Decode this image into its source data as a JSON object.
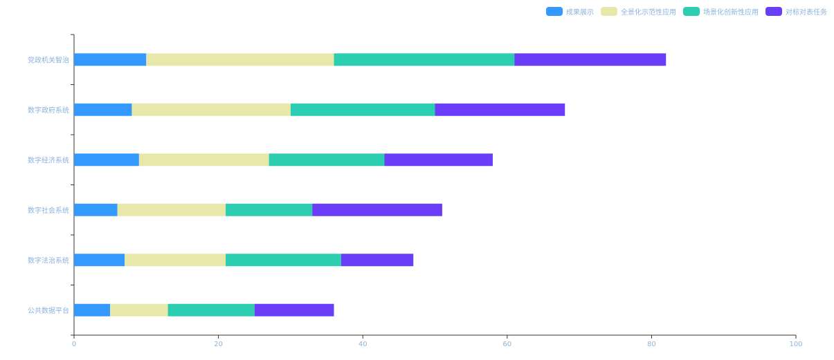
{
  "chart_data": {
    "type": "bar",
    "orientation": "horizontal",
    "stacked": true,
    "categories": [
      "党政机关智治",
      "数字政府系统",
      "数字经济系统",
      "数字社会系统",
      "数字法治系统",
      "公共数据平台"
    ],
    "series": [
      {
        "name": "成果展示",
        "color": "#3399ff",
        "values": [
          10,
          8,
          9,
          6,
          7,
          5
        ]
      },
      {
        "name": "全景化示范性应用",
        "color": "#e8e8aa",
        "values": [
          26,
          22,
          18,
          15,
          14,
          8
        ]
      },
      {
        "name": "场景化创新性应用",
        "color": "#2ccdb1",
        "values": [
          25,
          20,
          16,
          12,
          16,
          12
        ]
      },
      {
        "name": "对标对表任务",
        "color": "#6a3df8",
        "values": [
          21,
          18,
          15,
          18,
          10,
          11
        ]
      }
    ],
    "xlim": [
      0,
      100
    ],
    "xticks": [
      0,
      20,
      40,
      60,
      80,
      100
    ],
    "legend_position": "top-right",
    "grid": false
  }
}
